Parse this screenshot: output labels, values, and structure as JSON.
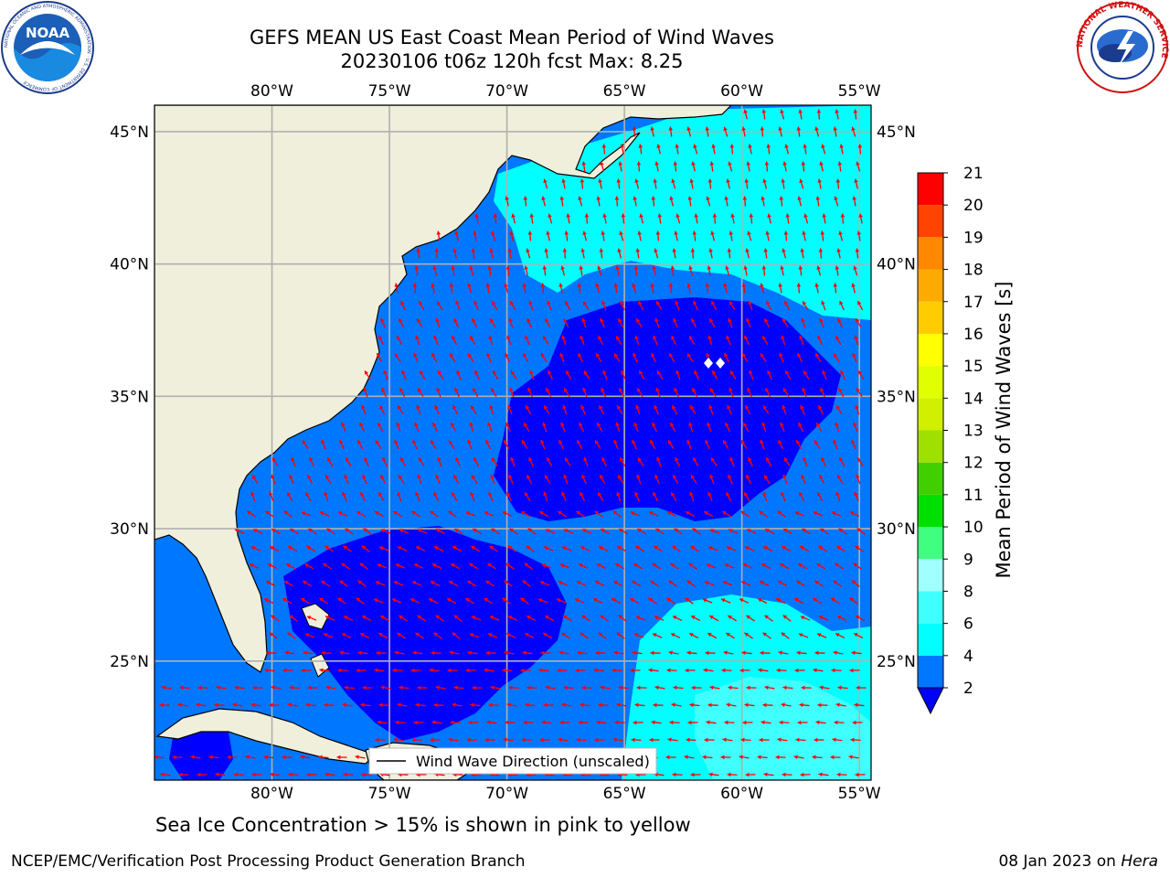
{
  "title_line1": "GEFS MEAN US East Coast Mean Period of Wind Waves",
  "title_line2": "20230106 t06z 120h fcst   Max: 8.25",
  "chart_data": {
    "type": "heatmap",
    "title": "GEFS MEAN US East Coast Mean Period of Wind Waves",
    "subtitle": "20230106 t06z 120h fcst   Max: 8.25",
    "projection": "lon-lat",
    "lon_range": [
      -85,
      -54.5
    ],
    "lat_range": [
      20.5,
      46
    ],
    "x_ticks": [
      "80°W",
      "75°W",
      "70°W",
      "65°W",
      "60°W",
      "55°W"
    ],
    "y_ticks": [
      "45°N",
      "40°N",
      "35°N",
      "30°N",
      "25°N"
    ],
    "grid": true,
    "max_value": 8.25,
    "colorbar": {
      "label": "Mean Period of Wind Waves [s]",
      "levels": [
        2,
        4,
        6,
        8,
        9,
        10,
        11,
        12,
        13,
        14,
        15,
        16,
        17,
        18,
        19,
        20,
        21
      ],
      "colors": [
        "#0000ff",
        "#0077ff",
        "#00ffff",
        "#40ffff",
        "#a0ffff",
        "#40ff80",
        "#00e000",
        "#40d000",
        "#a0e000",
        "#d0f000",
        "#e0ff00",
        "#ffff00",
        "#ffcc00",
        "#ffaa00",
        "#ff8800",
        "#ff4400",
        "#ff0000"
      ],
      "extend": "min"
    },
    "legend": {
      "label": "Wind Wave Direction (unscaled)",
      "position": "bottom-center"
    },
    "vector_color": "#ff0000",
    "land_color": "#efefdc"
  },
  "caption": "Sea Ice Concentration > 15% is shown in pink to yellow",
  "footer_left": "NCEP/EMC/Verification Post Processing Product Generation Branch",
  "footer_right_date": "08 Jan 2023 on ",
  "footer_right_host": "Hera",
  "logos": {
    "noaa_text": "NOAA",
    "noaa_ring": "NATIONAL OCEANIC AND ATMOSPHERIC ADMINISTRATION · U.S. DEPARTMENT OF COMMERCE",
    "nws_ring": "NATIONAL WEATHER SERVICE"
  }
}
